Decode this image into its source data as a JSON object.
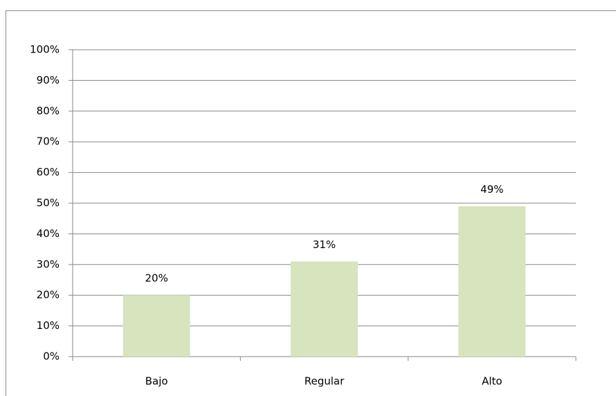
{
  "chart_data": {
    "type": "bar",
    "categories": [
      "Bajo",
      "Regular",
      "Alto"
    ],
    "values": [
      20,
      31,
      49
    ],
    "value_labels": [
      "20%",
      "31%",
      "49%"
    ],
    "color": "#d7e4bd",
    "ylim": [
      0,
      100
    ],
    "yticks": [
      {
        "value": 0,
        "label": "0%"
      },
      {
        "value": 10,
        "label": "10%"
      },
      {
        "value": 20,
        "label": "20%"
      },
      {
        "value": 30,
        "label": "30%"
      },
      {
        "value": 40,
        "label": "40%"
      },
      {
        "value": 50,
        "label": "50%"
      },
      {
        "value": 60,
        "label": "60%"
      },
      {
        "value": 70,
        "label": "70%"
      },
      {
        "value": 80,
        "label": "80%"
      },
      {
        "value": 90,
        "label": "90%"
      },
      {
        "value": 100,
        "label": "100%"
      }
    ],
    "grid": true
  }
}
